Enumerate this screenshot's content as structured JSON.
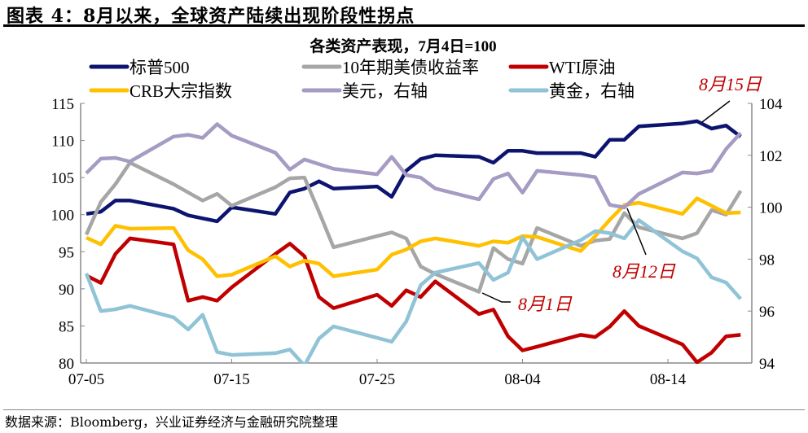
{
  "figure_title": "图表 4：8月以来，全球资产陆续出现阶段性拐点",
  "source": "数据来源：Bloomberg，兴业证券经济与金融研究院整理",
  "chart_data": {
    "type": "line",
    "title": "各类资产表现，7月4日=100",
    "xlabel": "",
    "ylabel": "",
    "y_left": {
      "range": [
        80,
        115
      ],
      "ticks": [
        80,
        85,
        90,
        95,
        100,
        105,
        110,
        115
      ]
    },
    "y_right": {
      "range": [
        94,
        104
      ],
      "ticks": [
        94,
        96,
        98,
        100,
        102,
        104
      ]
    },
    "x_ticks": [
      "07-05",
      "07-15",
      "07-25",
      "08-04",
      "08-14"
    ],
    "x": [
      "07-05",
      "07-06",
      "07-07",
      "07-08",
      "07-11",
      "07-12",
      "07-13",
      "07-14",
      "07-15",
      "07-18",
      "07-19",
      "07-20",
      "07-21",
      "07-22",
      "07-25",
      "07-26",
      "07-27",
      "07-28",
      "07-29",
      "08-01",
      "08-02",
      "08-03",
      "08-04",
      "08-05",
      "08-08",
      "08-09",
      "08-10",
      "08-11",
      "08-12",
      "08-15",
      "08-16",
      "08-17",
      "08-18",
      "08-19"
    ],
    "legend_placement": "top",
    "grid": false,
    "series": [
      {
        "name": "标普500",
        "axis": "left",
        "color": "#0d1470",
        "values": [
          100.1,
          100.4,
          101.9,
          101.9,
          100.8,
          99.9,
          99.5,
          99.1,
          101.0,
          100.1,
          103.0,
          103.5,
          104.5,
          103.5,
          103.8,
          102.4,
          105.9,
          107.5,
          108.0,
          107.8,
          107.0,
          108.6,
          108.6,
          108.3,
          108.3,
          107.8,
          110.1,
          110.1,
          111.9,
          112.3,
          112.6,
          111.6,
          112.0,
          110.5
        ]
      },
      {
        "name": "10年期美债收益率",
        "axis": "left",
        "color": "#a6a6a6",
        "values": [
          97.3,
          101.7,
          104.1,
          107.0,
          104.1,
          103.0,
          101.9,
          102.8,
          101.2,
          103.7,
          104.9,
          105.0,
          100.4,
          95.6,
          97.1,
          97.6,
          96.8,
          93.0,
          92.0,
          89.6,
          95.5,
          94.0,
          93.4,
          98.2,
          95.8,
          96.5,
          96.7,
          100.2,
          98.3,
          96.8,
          97.5,
          100.6,
          100.0,
          103.2
        ]
      },
      {
        "name": "WTI原油",
        "axis": "left",
        "color": "#c00000",
        "values": [
          91.8,
          90.8,
          94.7,
          96.8,
          96.0,
          88.4,
          88.9,
          88.4,
          90.2,
          94.7,
          96.1,
          94.4,
          88.9,
          87.4,
          89.2,
          87.7,
          89.8,
          88.9,
          91.0,
          86.6,
          87.2,
          83.6,
          81.7,
          82.2,
          83.8,
          83.5,
          84.9,
          87.0,
          85.0,
          82.5,
          80.1,
          81.4,
          83.6,
          83.8
        ]
      },
      {
        "name": "CRB大宗指数",
        "axis": "left",
        "color": "#ffc000",
        "values": [
          96.9,
          96.0,
          98.5,
          98.1,
          98.2,
          95.2,
          94.0,
          91.7,
          91.9,
          94.4,
          93.0,
          93.8,
          93.4,
          91.7,
          92.6,
          94.6,
          95.3,
          96.4,
          96.8,
          95.8,
          96.4,
          96.2,
          97.1,
          97.0,
          95.1,
          97.1,
          99.3,
          101.3,
          101.6,
          100.1,
          102.2,
          101.2,
          100.2,
          100.3
        ]
      },
      {
        "name": "美元，右轴",
        "axis": "right",
        "color": "#a59bc3",
        "values": [
          101.31,
          101.87,
          101.9,
          101.76,
          102.72,
          102.79,
          102.67,
          103.2,
          102.76,
          102.1,
          101.45,
          101.84,
          101.66,
          101.48,
          101.27,
          101.94,
          101.24,
          101.14,
          100.72,
          100.3,
          101.09,
          101.3,
          100.56,
          101.4,
          101.24,
          101.16,
          100.09,
          99.99,
          100.51,
          101.34,
          101.3,
          101.4,
          102.24,
          102.86
        ]
      },
      {
        "name": "黄金，右轴",
        "axis": "right",
        "color": "#8fc3d5",
        "values": [
          97.45,
          96.0,
          96.07,
          96.2,
          95.76,
          95.29,
          95.86,
          94.42,
          94.31,
          94.38,
          94.52,
          93.9,
          94.94,
          95.41,
          94.97,
          94.82,
          95.6,
          97.0,
          97.48,
          97.85,
          97.2,
          97.48,
          98.84,
          98.0,
          98.73,
          99.08,
          99.0,
          98.8,
          99.5,
          98.3,
          98.03,
          97.3,
          97.1,
          96.47
        ]
      }
    ],
    "annotations": [
      {
        "text": "8月15日",
        "date": "08-15",
        "series": "标普500"
      },
      {
        "text": "8月12日",
        "date": "08-12",
        "series": "美元，右轴"
      },
      {
        "text": "8月1日",
        "date": "08-01",
        "series": "10年期美债收益率"
      }
    ],
    "annotation_color": "#c00000"
  }
}
